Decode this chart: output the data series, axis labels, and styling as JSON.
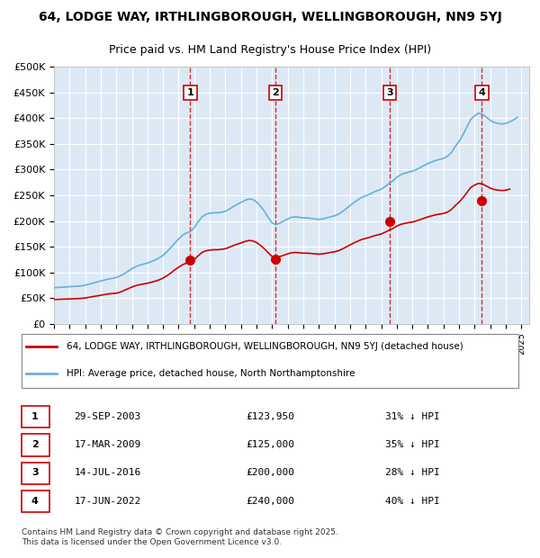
{
  "title_line1": "64, LODGE WAY, IRTHLINGBOROUGH, WELLINGBOROUGH, NN9 5YJ",
  "title_line2": "Price paid vs. HM Land Registry's House Price Index (HPI)",
  "background_color": "#dce9f5",
  "plot_bg_color": "#dce9f5",
  "ylim": [
    0,
    500000
  ],
  "yticks": [
    0,
    50000,
    100000,
    150000,
    200000,
    250000,
    300000,
    350000,
    400000,
    450000,
    500000
  ],
  "ytick_labels": [
    "£0",
    "£50K",
    "£100K",
    "£150K",
    "£200K",
    "£250K",
    "£300K",
    "£350K",
    "£400K",
    "£450K",
    "£500K"
  ],
  "hpi_color": "#6baed6",
  "price_color": "#cc0000",
  "sale_marker_color": "#cc0000",
  "dashed_line_color": "#cc0000",
  "legend_box_color": "#ffffff",
  "sale_label1": "64, LODGE WAY, IRTHLINGBOROUGH, WELLINGBOROUGH, NN9 5YJ (detached house)",
  "sale_label2": "HPI: Average price, detached house, North Northamptonshire",
  "transactions": [
    {
      "num": 1,
      "date": "29-SEP-2003",
      "price": 123950,
      "hpi_pct": "31% ↓ HPI",
      "year": 2003.75
    },
    {
      "num": 2,
      "date": "17-MAR-2009",
      "price": 125000,
      "hpi_pct": "35% ↓ HPI",
      "year": 2009.21
    },
    {
      "num": 3,
      "date": "14-JUL-2016",
      "price": 200000,
      "hpi_pct": "28% ↓ HPI",
      "year": 2016.54
    },
    {
      "num": 4,
      "date": "17-JUN-2022",
      "price": 240000,
      "hpi_pct": "40% ↓ HPI",
      "year": 2022.46
    }
  ],
  "footer": "Contains HM Land Registry data © Crown copyright and database right 2025.\nThis data is licensed under the Open Government Licence v3.0.",
  "hpi_data": {
    "years": [
      1995,
      1995.25,
      1995.5,
      1995.75,
      1996,
      1996.25,
      1996.5,
      1996.75,
      1997,
      1997.25,
      1997.5,
      1997.75,
      1998,
      1998.25,
      1998.5,
      1998.75,
      1999,
      1999.25,
      1999.5,
      1999.75,
      2000,
      2000.25,
      2000.5,
      2000.75,
      2001,
      2001.25,
      2001.5,
      2001.75,
      2002,
      2002.25,
      2002.5,
      2002.75,
      2003,
      2003.25,
      2003.5,
      2003.75,
      2004,
      2004.25,
      2004.5,
      2004.75,
      2005,
      2005.25,
      2005.5,
      2005.75,
      2006,
      2006.25,
      2006.5,
      2006.75,
      2007,
      2007.25,
      2007.5,
      2007.75,
      2008,
      2008.25,
      2008.5,
      2008.75,
      2009,
      2009.25,
      2009.5,
      2009.75,
      2010,
      2010.25,
      2010.5,
      2010.75,
      2011,
      2011.25,
      2011.5,
      2011.75,
      2012,
      2012.25,
      2012.5,
      2012.75,
      2013,
      2013.25,
      2013.5,
      2013.75,
      2014,
      2014.25,
      2014.5,
      2014.75,
      2015,
      2015.25,
      2015.5,
      2015.75,
      2016,
      2016.25,
      2016.5,
      2016.75,
      2017,
      2017.25,
      2017.5,
      2017.75,
      2018,
      2018.25,
      2018.5,
      2018.75,
      2019,
      2019.25,
      2019.5,
      2019.75,
      2020,
      2020.25,
      2020.5,
      2020.75,
      2021,
      2021.25,
      2021.5,
      2021.75,
      2022,
      2022.25,
      2022.5,
      2022.75,
      2023,
      2023.25,
      2023.5,
      2023.75,
      2024,
      2024.25,
      2024.5,
      2024.75
    ],
    "values": [
      70000,
      70500,
      71000,
      71500,
      72000,
      72500,
      73000,
      73500,
      75000,
      77000,
      79000,
      81000,
      83000,
      85000,
      87000,
      88000,
      90000,
      93000,
      97000,
      102000,
      107000,
      111000,
      114000,
      116000,
      118000,
      121000,
      124000,
      128000,
      133000,
      140000,
      148000,
      157000,
      165000,
      172000,
      177000,
      179000,
      187000,
      198000,
      208000,
      213000,
      215000,
      216000,
      216000,
      217000,
      219000,
      223000,
      228000,
      232000,
      236000,
      240000,
      243000,
      242000,
      237000,
      229000,
      219000,
      207000,
      196000,
      193000,
      196000,
      200000,
      204000,
      207000,
      208000,
      207000,
      206000,
      206000,
      205000,
      204000,
      203000,
      204000,
      206000,
      208000,
      210000,
      213000,
      218000,
      224000,
      230000,
      236000,
      241000,
      246000,
      249000,
      252000,
      256000,
      259000,
      262000,
      267000,
      273000,
      278000,
      285000,
      290000,
      293000,
      295000,
      297000,
      300000,
      304000,
      308000,
      312000,
      315000,
      318000,
      320000,
      322000,
      326000,
      333000,
      345000,
      355000,
      368000,
      383000,
      398000,
      405000,
      410000,
      408000,
      402000,
      396000,
      392000,
      390000,
      389000,
      390000,
      393000,
      397000,
      402000
    ],
    "base_scale": 1.0
  },
  "price_paid_data": {
    "years": [
      1995,
      1995.25,
      1995.5,
      1995.75,
      1996,
      1996.25,
      1996.5,
      1996.75,
      1997,
      1997.25,
      1997.5,
      1997.75,
      1998,
      1998.25,
      1998.5,
      1998.75,
      1999,
      1999.25,
      1999.5,
      1999.75,
      2000,
      2000.25,
      2000.5,
      2000.75,
      2001,
      2001.25,
      2001.5,
      2001.75,
      2002,
      2002.25,
      2002.5,
      2002.75,
      2003,
      2003.25,
      2003.5,
      2003.75,
      2004,
      2004.25,
      2004.5,
      2004.75,
      2005,
      2005.25,
      2005.5,
      2005.75,
      2006,
      2006.25,
      2006.5,
      2006.75,
      2007,
      2007.25,
      2007.5,
      2007.75,
      2008,
      2008.25,
      2008.5,
      2008.75,
      2009,
      2009.25,
      2009.5,
      2009.75,
      2010,
      2010.25,
      2010.5,
      2010.75,
      2011,
      2011.25,
      2011.5,
      2011.75,
      2012,
      2012.25,
      2012.5,
      2012.75,
      2013,
      2013.25,
      2013.5,
      2013.75,
      2014,
      2014.25,
      2014.5,
      2014.75,
      2015,
      2015.25,
      2015.5,
      2015.75,
      2016,
      2016.25,
      2016.5,
      2016.75,
      2017,
      2017.25,
      2017.5,
      2017.75,
      2018,
      2018.25,
      2018.5,
      2018.75,
      2019,
      2019.25,
      2019.5,
      2019.75,
      2020,
      2020.25,
      2020.5,
      2020.75,
      2021,
      2021.25,
      2021.5,
      2021.75,
      2022,
      2022.25,
      2022.5,
      2022.75,
      2023,
      2023.25,
      2023.5,
      2023.75,
      2024,
      2024.25
    ],
    "values": [
      47000,
      47300,
      47600,
      47900,
      48200,
      48500,
      48800,
      49100,
      50000,
      51300,
      52700,
      54000,
      55300,
      56700,
      58000,
      58700,
      59300,
      61300,
      64700,
      68000,
      71300,
      74000,
      76000,
      77300,
      78700,
      80700,
      82700,
      85300,
      88700,
      93300,
      98700,
      104700,
      110000,
      114700,
      118000,
      119300,
      124700,
      132000,
      138700,
      142000,
      143300,
      144000,
      144000,
      144700,
      146000,
      148700,
      152000,
      154700,
      157300,
      160000,
      162000,
      161300,
      158000,
      152700,
      146000,
      138000,
      130700,
      128700,
      130700,
      133300,
      136000,
      138000,
      138700,
      138000,
      137300,
      137300,
      136700,
      136000,
      135300,
      136000,
      137300,
      138700,
      140000,
      142000,
      145300,
      149300,
      153300,
      157300,
      160700,
      164000,
      166000,
      168000,
      170700,
      172700,
      174700,
      178000,
      182000,
      185300,
      190000,
      193300,
      195300,
      196700,
      198000,
      200000,
      202700,
      205300,
      208000,
      210000,
      212000,
      213300,
      214700,
      217300,
      222000,
      230000,
      236700,
      245300,
      255300,
      265300,
      270000,
      273300,
      272000,
      268000,
      264000,
      261300,
      260000,
      259300,
      260000,
      262000
    ]
  }
}
